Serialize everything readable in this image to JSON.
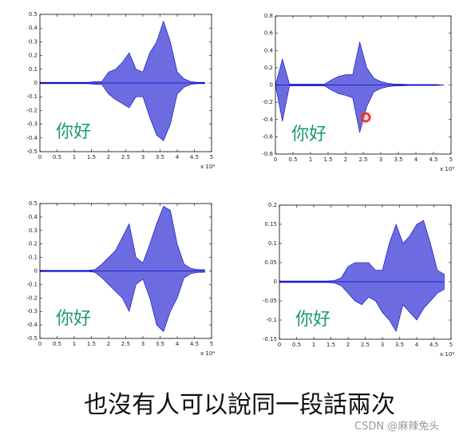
{
  "chart_data": [
    {
      "type": "area",
      "annotation": "你好",
      "xlabel": "x 10⁴",
      "x": [
        0,
        0.2,
        0.4,
        0.6,
        0.8,
        1.0,
        1.2,
        1.4,
        1.6,
        1.8,
        2.0,
        2.2,
        2.4,
        2.6,
        2.8,
        3.0,
        3.2,
        3.4,
        3.6,
        3.8,
        4.0,
        4.2,
        4.4,
        4.6,
        4.8
      ],
      "series": [
        {
          "color": "#3b3bd6",
          "values": [
            0.005,
            0.005,
            0.005,
            0.005,
            0.005,
            0.005,
            0.005,
            0.005,
            0.01,
            0.01,
            0.08,
            0.1,
            0.15,
            0.22,
            0.1,
            0.08,
            0.22,
            0.3,
            0.45,
            0.3,
            0.08,
            0.03,
            0.01,
            0.005,
            0.005
          ]
        },
        {
          "color": "#3b3bd6",
          "values": [
            -0.005,
            -0.005,
            -0.005,
            -0.005,
            -0.005,
            -0.005,
            -0.005,
            -0.005,
            -0.01,
            -0.01,
            -0.08,
            -0.12,
            -0.15,
            -0.18,
            -0.1,
            -0.1,
            -0.25,
            -0.38,
            -0.42,
            -0.3,
            -0.08,
            -0.03,
            -0.01,
            -0.005,
            -0.005
          ]
        }
      ],
      "xlim": [
        0,
        5
      ],
      "xticks": [
        0,
        0.5,
        1,
        1.5,
        2,
        2.5,
        3,
        3.5,
        4,
        4.5,
        5
      ],
      "ylim": [
        -0.5,
        0.5
      ],
      "yticks": [
        -0.5,
        -0.4,
        -0.3,
        -0.2,
        -0.1,
        0,
        0.1,
        0.2,
        0.3,
        0.4,
        0.5
      ]
    },
    {
      "type": "area",
      "annotation": "你好",
      "xlabel": "x 10⁴",
      "x": [
        0,
        0.2,
        0.4,
        0.6,
        0.8,
        1.0,
        1.2,
        1.4,
        1.6,
        1.8,
        2.0,
        2.2,
        2.4,
        2.6,
        2.8,
        3.0,
        3.2,
        3.4,
        3.6,
        3.8,
        4.0,
        4.2,
        4.4,
        4.6,
        4.8
      ],
      "series": [
        {
          "color": "#3b3bd6",
          "values": [
            0,
            0.3,
            0.01,
            0.01,
            0.01,
            0.01,
            0.01,
            0.01,
            0.06,
            0.1,
            0.12,
            0.12,
            0.5,
            0.2,
            0.08,
            0.04,
            0.02,
            0.01,
            0.01,
            0.005,
            0.005,
            0.005,
            0.005,
            0.005,
            0
          ]
        },
        {
          "color": "#3b3bd6",
          "values": [
            0,
            -0.42,
            -0.01,
            -0.01,
            -0.01,
            -0.01,
            -0.01,
            -0.01,
            -0.06,
            -0.1,
            -0.12,
            -0.15,
            -0.55,
            -0.25,
            -0.08,
            -0.04,
            -0.02,
            -0.01,
            -0.01,
            -0.005,
            -0.005,
            -0.005,
            -0.005,
            -0.005,
            0
          ]
        }
      ],
      "xlim": [
        0,
        5
      ],
      "xticks": [
        0,
        0.5,
        1,
        1.5,
        2,
        2.5,
        3,
        3.5,
        4,
        4.5,
        5
      ],
      "ylim": [
        -0.8,
        0.8
      ],
      "yticks": [
        -0.8,
        -0.6,
        -0.4,
        -0.2,
        0,
        0.2,
        0.4,
        0.6,
        0.8
      ]
    },
    {
      "type": "area",
      "annotation": "你好",
      "xlabel": "x 10⁴",
      "x": [
        0,
        0.2,
        0.4,
        0.6,
        0.8,
        1.0,
        1.2,
        1.4,
        1.6,
        1.8,
        2.0,
        2.2,
        2.4,
        2.6,
        2.8,
        3.0,
        3.2,
        3.4,
        3.6,
        3.8,
        4.0,
        4.2,
        4.4,
        4.6,
        4.8
      ],
      "series": [
        {
          "color": "#3b3bd6",
          "values": [
            0.005,
            0.005,
            0.005,
            0.005,
            0.005,
            0.005,
            0.005,
            0.005,
            0.01,
            0.05,
            0.1,
            0.15,
            0.25,
            0.35,
            0.1,
            0.06,
            0.2,
            0.35,
            0.48,
            0.45,
            0.2,
            0.05,
            0.02,
            0.01,
            0.01
          ]
        },
        {
          "color": "#3b3bd6",
          "values": [
            -0.005,
            -0.005,
            -0.005,
            -0.005,
            -0.005,
            -0.005,
            -0.005,
            -0.005,
            -0.01,
            -0.05,
            -0.1,
            -0.15,
            -0.2,
            -0.3,
            -0.1,
            -0.06,
            -0.2,
            -0.4,
            -0.45,
            -0.3,
            -0.2,
            -0.05,
            -0.02,
            -0.01,
            -0.01
          ]
        }
      ],
      "xlim": [
        0,
        5
      ],
      "xticks": [
        0,
        0.5,
        1,
        1.5,
        2,
        2.5,
        3,
        3.5,
        4,
        4.5,
        5
      ],
      "ylim": [
        -0.5,
        0.5
      ],
      "yticks": [
        -0.5,
        -0.4,
        -0.3,
        -0.2,
        -0.1,
        0,
        0.1,
        0.2,
        0.3,
        0.4,
        0.5
      ]
    },
    {
      "type": "area",
      "annotation": "你好",
      "xlabel": "x 10⁴",
      "x": [
        0,
        0.2,
        0.4,
        0.6,
        0.8,
        1.0,
        1.2,
        1.4,
        1.6,
        1.8,
        2.0,
        2.2,
        2.4,
        2.6,
        2.8,
        3.0,
        3.2,
        3.4,
        3.6,
        3.8,
        4.0,
        4.2,
        4.4,
        4.6,
        4.8
      ],
      "series": [
        {
          "color": "#3b3bd6",
          "values": [
            0.002,
            0.002,
            0.002,
            0.002,
            0.002,
            0.002,
            0.002,
            0.002,
            0.003,
            0.01,
            0.04,
            0.05,
            0.05,
            0.05,
            0.03,
            0.03,
            0.1,
            0.15,
            0.1,
            0.12,
            0.15,
            0.16,
            0.1,
            0.03,
            0.02
          ]
        },
        {
          "color": "#3b3bd6",
          "values": [
            -0.002,
            -0.002,
            -0.002,
            -0.002,
            -0.002,
            -0.002,
            -0.002,
            -0.002,
            -0.003,
            -0.01,
            -0.03,
            -0.05,
            -0.06,
            -0.04,
            -0.05,
            -0.08,
            -0.1,
            -0.13,
            -0.06,
            -0.08,
            -0.1,
            -0.07,
            -0.05,
            -0.03,
            -0.02
          ]
        }
      ],
      "xlim": [
        0,
        5
      ],
      "xticks": [
        0,
        0.5,
        1,
        1.5,
        2,
        2.5,
        3,
        3.5,
        4,
        4.5,
        5
      ],
      "ylim": [
        -0.15,
        0.2
      ],
      "yticks": [
        -0.15,
        -0.1,
        -0.05,
        0,
        0.05,
        0.1,
        0.15,
        0.2
      ]
    }
  ],
  "caption": "也沒有人可以說同一段話兩次",
  "watermark": "CSDN @麻辣兔头"
}
